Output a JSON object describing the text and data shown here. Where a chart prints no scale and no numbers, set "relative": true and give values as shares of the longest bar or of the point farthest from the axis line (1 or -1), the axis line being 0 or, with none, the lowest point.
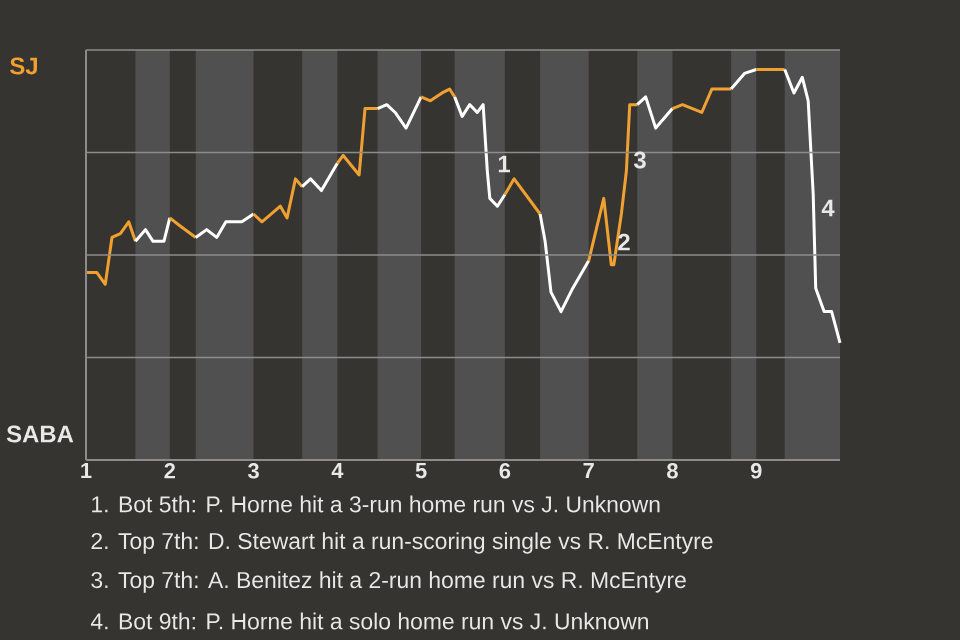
{
  "chart_data": {
    "type": "line",
    "relative": true,
    "tick_labels": "x",
    "xlim": [
      1,
      10
    ],
    "xticks": [
      1,
      2,
      3,
      4,
      5,
      6,
      7,
      8,
      9
    ],
    "grid": "y",
    "series": [
      {
        "color": "#f0a030",
        "x": [
          1.0,
          1.13,
          1.23,
          1.31,
          1.41,
          1.51,
          1.59
        ],
        "values": [
          0.48,
          0.48,
          0.45,
          0.57,
          0.58,
          0.61,
          0.56
        ]
      },
      {
        "color": "#ffffff",
        "x": [
          1.59,
          1.71,
          1.8,
          1.93,
          2.0
        ],
        "values": [
          0.56,
          0.59,
          0.56,
          0.56,
          0.62
        ]
      },
      {
        "color": "#f0a131",
        "x": [
          2.0,
          2.12,
          2.31
        ],
        "values": [
          0.62,
          0.6,
          0.57
        ]
      },
      {
        "color": "#ffffff",
        "x": [
          2.31,
          2.44,
          2.56,
          2.67,
          2.86,
          3.0
        ],
        "values": [
          0.57,
          0.59,
          0.57,
          0.61,
          0.61,
          0.63
        ]
      },
      {
        "color": "#f0a030",
        "x": [
          3.0,
          3.1,
          3.32,
          3.4,
          3.5,
          3.58
        ],
        "values": [
          0.63,
          0.61,
          0.65,
          0.62,
          0.72,
          0.7
        ]
      },
      {
        "color": "#ffffff",
        "x": [
          3.58,
          3.68,
          3.81,
          4.0
        ],
        "values": [
          0.7,
          0.72,
          0.69,
          0.76
        ]
      },
      {
        "color": "#f0a030",
        "x": [
          4.0,
          4.07,
          4.26,
          4.33,
          4.45,
          4.48
        ],
        "values": [
          0.76,
          0.78,
          0.73,
          0.9,
          0.9,
          0.9
        ]
      },
      {
        "color": "#ffffff",
        "x": [
          4.48,
          4.59,
          4.69,
          4.82,
          5.0
        ],
        "values": [
          0.9,
          0.91,
          0.89,
          0.85,
          0.93
        ]
      },
      {
        "color": "#f0a030",
        "x": [
          5.0,
          5.11,
          5.25,
          5.34,
          5.4
        ],
        "values": [
          0.93,
          0.92,
          0.94,
          0.95,
          0.93
        ]
      },
      {
        "color": "#ffffff",
        "x": [
          5.4,
          5.49,
          5.58,
          5.67,
          5.74,
          5.79,
          5.82,
          5.91,
          6.0
        ],
        "values": [
          0.93,
          0.88,
          0.91,
          0.89,
          0.91,
          0.74,
          0.67,
          0.65,
          0.68
        ]
      },
      {
        "color": "#f0a030",
        "x": [
          6.0,
          6.11,
          6.42
        ],
        "values": [
          0.68,
          0.72,
          0.63
        ]
      },
      {
        "color": "#ffffff",
        "x": [
          6.42,
          6.48,
          6.55,
          6.67,
          6.81,
          7.0
        ],
        "values": [
          0.63,
          0.56,
          0.43,
          0.38,
          0.44,
          0.51
        ]
      },
      {
        "color": "#f0a132",
        "x": [
          7.0,
          7.18,
          7.27,
          7.3,
          7.39,
          7.45,
          7.49,
          7.58
        ],
        "values": [
          0.51,
          0.67,
          0.5,
          0.5,
          0.63,
          0.74,
          0.91,
          0.91
        ]
      },
      {
        "color": "#ffffff",
        "x": [
          7.58,
          7.68,
          7.8,
          8.0
        ],
        "values": [
          0.91,
          0.93,
          0.85,
          0.9
        ]
      },
      {
        "color": "#f0a133",
        "x": [
          8.0,
          8.12,
          8.35,
          8.47,
          8.7
        ],
        "values": [
          0.9,
          0.91,
          0.89,
          0.95,
          0.95
        ]
      },
      {
        "color": "#ffffff",
        "x": [
          8.7,
          8.86,
          9.0
        ],
        "values": [
          0.95,
          0.99,
          1
        ]
      },
      {
        "color": "#f0a030",
        "x": [
          9.0,
          9.34
        ],
        "values": [
          1,
          1
        ]
      },
      {
        "color": "#ffffff",
        "x": [
          9.34,
          9.45,
          9.55,
          9.62,
          9.68,
          9.71,
          9.81,
          9.9,
          10.0
        ],
        "values": [
          1,
          0.94,
          0.98,
          0.92,
          0.68,
          0.44,
          0.38,
          0.38,
          0.3
        ]
      }
    ],
    "bands": [
      {
        "axis": "x",
        "from": 1.59,
        "to": 2,
        "color": "#505050"
      },
      {
        "axis": "x",
        "from": 2.31,
        "to": 3,
        "color": "#505050"
      },
      {
        "axis": "x",
        "from": 3.58,
        "to": 4,
        "color": "#505050"
      },
      {
        "axis": "x",
        "from": 4.48,
        "to": 5,
        "color": "#505050"
      },
      {
        "axis": "x",
        "from": 5.4,
        "to": 6,
        "color": "#505050"
      },
      {
        "axis": "x",
        "from": 6.42,
        "to": 7,
        "color": "#505050"
      },
      {
        "axis": "x",
        "from": 7.58,
        "to": 8,
        "color": "#505050"
      },
      {
        "axis": "x",
        "from": 8.7,
        "to": 9,
        "color": "#505050"
      },
      {
        "axis": "x",
        "from": 9.34,
        "to": 10,
        "color": "#505050"
      }
    ],
    "annotations": [
      "SJ",
      "SABA",
      "1",
      "2",
      "3",
      "4",
      "1. Bot 5th: P. Horne hit a 3-run home run vs J. Unknown",
      "2. Top 7th: D. Stewart hit a run-scoring single vs R. McEntyre",
      "3. Top 7th: A. Benitez hit a 2-run home run vs R. McEntyre",
      "4. Bot 9th: P. Horne hit a solo home run vs J. Unknown"
    ]
  }
}
